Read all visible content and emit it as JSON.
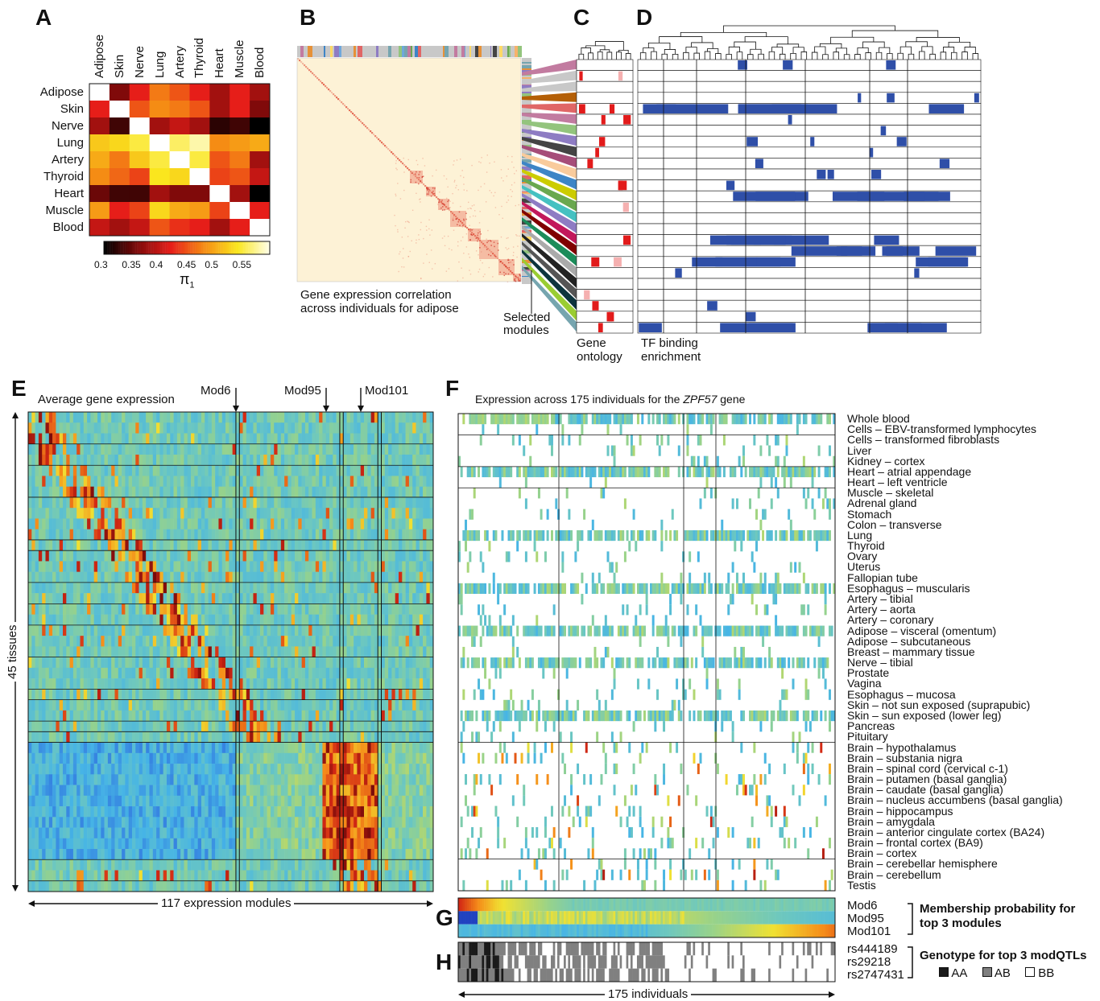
{
  "panels": {
    "A": "A",
    "B": "B",
    "C": "C",
    "D": "D",
    "E": "E",
    "F": "F",
    "G": "G",
    "H": "H"
  },
  "panel_b": {
    "caption_line1": "Gene expression correlation",
    "caption_line2": "across individuals for adipose",
    "selected_line1": "Selected",
    "selected_line2": "modules"
  },
  "panel_c": {
    "label_line1": "Gene",
    "label_line2": "ontology"
  },
  "panel_d": {
    "label_line1": "TF binding",
    "label_line2": "enrichment"
  },
  "panel_e": {
    "title": "Average gene expression",
    "yaxis": "45 tissues",
    "xaxis": "117 expression modules",
    "markers": [
      "Mod6",
      "Mod95",
      "Mod101"
    ]
  },
  "panel_f": {
    "title_pre": "Expression across 175 individuals for the ",
    "title_gene": "ZPF57",
    "title_post": " gene"
  },
  "panel_g": {
    "rows": [
      "Mod6",
      "Mod95",
      "Mod101"
    ],
    "note_line1": "Membership probability for",
    "note_line2": "top 3 modules"
  },
  "panel_h": {
    "rows": [
      "rs444189",
      "rs29218",
      "rs2747431"
    ],
    "note": "Genotype for top 3 modQTLs",
    "legend": [
      "AA",
      "AB",
      "BB"
    ],
    "legend_colors": [
      "#1a1a1a",
      "#808080",
      "#ffffff"
    ],
    "xaxis": "175 individuals"
  },
  "tissues": [
    "Whole blood",
    "Cells – EBV-transformed lymphocytes",
    "Cells – transformed fibroblasts",
    "Liver",
    "Kidney – cortex",
    "Heart – atrial appendage",
    "Heart – left ventricle",
    "Muscle – skeletal",
    "Adrenal gland",
    "Stomach",
    "Colon – transverse",
    "Lung",
    "Thyroid",
    "Ovary",
    "Uterus",
    "Fallopian tube",
    "Esophagus – muscularis",
    "Artery – tibial",
    "Artery – aorta",
    "Artery – coronary",
    "Adipose – visceral (omentum)",
    "Adipose – subcutaneous",
    "Breast – mammary tissue",
    "Nerve – tibial",
    "Prostate",
    "Vagina",
    "Esophagus – mucosa",
    "Skin – not sun exposed (suprapubic)",
    "Skin – sun exposed (lower leg)",
    "Pancreas",
    "Pituitary",
    "Brain – hypothalamus",
    "Brain – substania nigra",
    "Brain – spinal cord (cervical c-1)",
    "Brain – putamen (basal ganglia)",
    "Brain – caudate (basal ganglia)",
    "Brain – nucleus accumbens (basal ganglia)",
    "Brain – hippocampus",
    "Brain – amygdala",
    "Brain – anterior cingulate cortex (BA24)",
    "Brain – frontal cortex (BA9)",
    "Brain – cortex",
    "Brain – cerebellar hemisphere",
    "Brain – cerebellum",
    "Testis"
  ],
  "chart_data": [
    {
      "type": "heatmap",
      "panel": "A",
      "rows": [
        "Adipose",
        "Skin",
        "Nerve",
        "Lung",
        "Artery",
        "Thyroid",
        "Heart",
        "Muscle",
        "Blood"
      ],
      "columns": [
        "Adipose",
        "Skin",
        "Nerve",
        "Lung",
        "Artery",
        "Thyroid",
        "Heart",
        "Muscle",
        "Blood"
      ],
      "values": [
        [
          null,
          0.36,
          0.42,
          0.47,
          0.45,
          0.42,
          0.38,
          0.42,
          0.38
        ],
        [
          0.42,
          null,
          0.45,
          0.48,
          0.47,
          0.45,
          0.38,
          0.42,
          0.36
        ],
        [
          0.38,
          0.33,
          null,
          0.38,
          0.4,
          0.38,
          0.32,
          0.33,
          0.29
        ],
        [
          0.52,
          0.53,
          0.55,
          null,
          0.56,
          0.58,
          0.48,
          0.49,
          0.5
        ],
        [
          0.5,
          0.47,
          0.52,
          0.55,
          null,
          0.55,
          0.45,
          0.47,
          0.38
        ],
        [
          0.48,
          0.46,
          0.44,
          0.54,
          0.53,
          null,
          0.44,
          0.45,
          0.4
        ],
        [
          0.35,
          0.33,
          0.33,
          0.38,
          0.36,
          0.36,
          null,
          0.38,
          0.28
        ],
        [
          0.49,
          0.42,
          0.44,
          0.53,
          0.5,
          0.49,
          0.44,
          null,
          0.42
        ],
        [
          0.4,
          0.38,
          0.4,
          0.45,
          0.43,
          0.42,
          0.38,
          0.42,
          null
        ]
      ],
      "colorbar": {
        "label": "π",
        "label_sub": "1",
        "min": 0.3,
        "max": 0.6,
        "ticks": [
          0.3,
          0.35,
          0.4,
          0.45,
          0.5,
          0.55
        ]
      }
    },
    {
      "type": "heatmap",
      "panel": "B",
      "title": "Gene expression correlation across individuals for adipose"
    },
    {
      "type": "heatmap",
      "panel": "C",
      "title": "Gene ontology",
      "rows": 25
    },
    {
      "type": "heatmap",
      "panel": "D",
      "title": "TF binding enrichment",
      "rows": 25
    },
    {
      "type": "heatmap",
      "panel": "E",
      "title": "Average gene expression",
      "rows": 45,
      "columns": 117,
      "highlighted_modules": [
        "Mod6",
        "Mod95",
        "Mod101"
      ]
    },
    {
      "type": "heatmap",
      "panel": "F",
      "title": "Expression across 175 individuals for the ZPF57 gene",
      "rows": 45,
      "columns": 175
    },
    {
      "type": "heatmap",
      "panel": "G",
      "rows": [
        "Mod6",
        "Mod95",
        "Mod101"
      ],
      "columns": 175
    },
    {
      "type": "heatmap",
      "panel": "H",
      "rows": [
        "rs444189",
        "rs29218",
        "rs2747431"
      ],
      "columns": 175,
      "categories": [
        "AA",
        "AB",
        "BB"
      ]
    }
  ]
}
